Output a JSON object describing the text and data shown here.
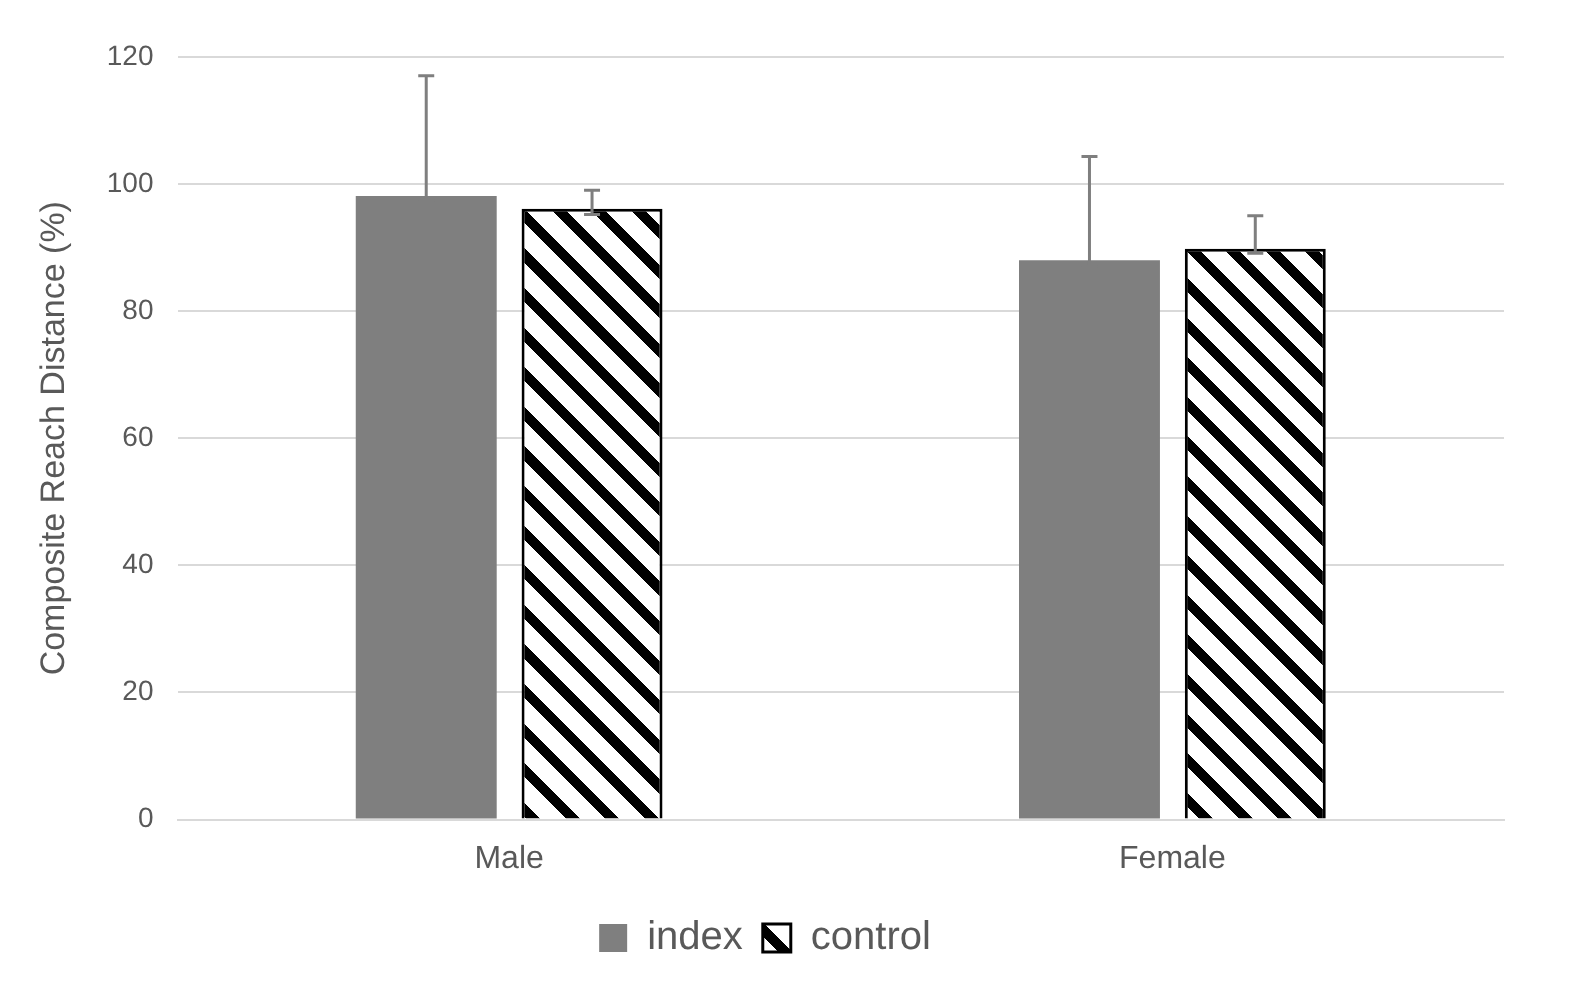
{
  "chart_data": {
    "type": "bar",
    "ylabel": "Composite Reach Distance (%)",
    "categories": [
      "Male",
      "Female"
    ],
    "series": [
      {
        "name": "index",
        "color": "#7f7f7f",
        "values": [
          98.1,
          88.0
        ],
        "errors": [
          [
            97.4,
            117.0
          ],
          [
            87.0,
            104.3
          ]
        ]
      },
      {
        "name": "control",
        "color": "#000000",
        "values": [
          96.1,
          89.8
        ],
        "errors": [
          [
            95.2,
            99.0
          ],
          [
            89.1,
            95.0
          ]
        ]
      }
    ],
    "ylim": [
      0,
      120
    ],
    "yticks": [
      0,
      20,
      40,
      60,
      80,
      100,
      120
    ],
    "grid": "y",
    "legend": "bottom"
  }
}
